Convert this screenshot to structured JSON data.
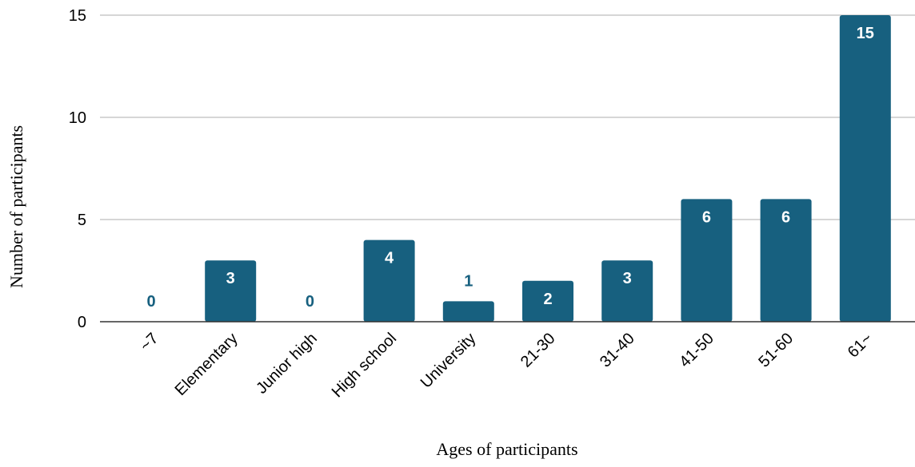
{
  "chart_data": {
    "type": "bar",
    "title": "",
    "xlabel": "Ages of participants",
    "ylabel": "Number of participants",
    "categories": [
      "~7",
      "Elementary",
      "Junior high",
      "High school",
      "University",
      "21-30",
      "31-40",
      "41-50",
      "51-60",
      "61~"
    ],
    "values": [
      0,
      3,
      0,
      4,
      1,
      2,
      3,
      6,
      6,
      15
    ],
    "ylim": [
      0,
      15
    ],
    "yticks": [
      0,
      5,
      10,
      15
    ],
    "grid": true,
    "legend": "none",
    "colors": {
      "bar": "#17607f",
      "label_inside": "#ffffff",
      "label_outside": "#17607f",
      "grid": "#c8c8c8",
      "axis": "#333333"
    }
  }
}
